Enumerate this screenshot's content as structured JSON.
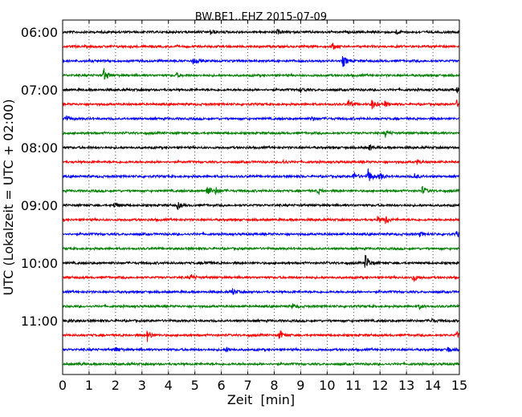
{
  "chart_data": {
    "type": "line",
    "title": "BW.BE1..EHZ 2015-07-09",
    "xlabel": "Zeit  [min]",
    "ylabel": "UTC (Lokalzeit = UTC + 02:00)",
    "xlim": [
      0,
      15
    ],
    "x_ticks": [
      "0",
      "1",
      "2",
      "3",
      "4",
      "5",
      "6",
      "7",
      "8",
      "9",
      "10",
      "11",
      "12",
      "13",
      "14",
      "15"
    ],
    "y_ticks": [
      "06:00",
      "07:00",
      "08:00",
      "09:00",
      "10:00",
      "11:00"
    ],
    "grid": "vertical dotted",
    "color_cycle": [
      "#000000",
      "#ff0000",
      "#0000ff",
      "#008000"
    ],
    "traces": [
      {
        "start": "06:00",
        "color": "#000000",
        "events": [
          {
            "t": 5.6,
            "a": 0.4
          },
          {
            "t": 8.1,
            "a": 0.3
          },
          {
            "t": 12.6,
            "a": 0.3
          }
        ]
      },
      {
        "start": "06:15",
        "color": "#ff0000",
        "events": [
          {
            "t": 10.2,
            "a": 0.4
          }
        ]
      },
      {
        "start": "06:30",
        "color": "#0000ff",
        "events": [
          {
            "t": 4.95,
            "a": 0.5
          },
          {
            "t": 10.6,
            "a": 0.8
          }
        ]
      },
      {
        "start": "06:45",
        "color": "#008000",
        "events": [
          {
            "t": 1.55,
            "a": 1.0
          },
          {
            "t": 4.3,
            "a": 0.3
          }
        ]
      },
      {
        "start": "07:00",
        "color": "#000000",
        "events": [
          {
            "t": 9.0,
            "a": 0.3
          },
          {
            "t": 14.9,
            "a": 0.3
          }
        ]
      },
      {
        "start": "07:15",
        "color": "#ff0000",
        "events": [
          {
            "t": 10.8,
            "a": 0.6
          },
          {
            "t": 11.7,
            "a": 0.7
          },
          {
            "t": 12.2,
            "a": 0.4
          },
          {
            "t": 14.9,
            "a": 0.5
          }
        ]
      },
      {
        "start": "07:30",
        "color": "#0000ff",
        "events": [
          {
            "t": 0.1,
            "a": 0.5
          },
          {
            "t": 9.4,
            "a": 0.3
          }
        ]
      },
      {
        "start": "07:45",
        "color": "#008000",
        "events": [
          {
            "t": 12.2,
            "a": 0.5
          }
        ]
      },
      {
        "start": "08:00",
        "color": "#000000",
        "events": [
          {
            "t": 11.6,
            "a": 0.4
          }
        ]
      },
      {
        "start": "08:15",
        "color": "#ff0000",
        "events": [
          {
            "t": 8.3,
            "a": 0.3
          },
          {
            "t": 13.4,
            "a": 0.3
          }
        ]
      },
      {
        "start": "08:30",
        "color": "#0000ff",
        "events": [
          {
            "t": 11.0,
            "a": 0.6
          },
          {
            "t": 11.55,
            "a": 1.0
          },
          {
            "t": 12.0,
            "a": 0.5
          },
          {
            "t": 13.3,
            "a": 0.4
          }
        ]
      },
      {
        "start": "08:45",
        "color": "#008000",
        "events": [
          {
            "t": 5.45,
            "a": 0.9
          },
          {
            "t": 5.8,
            "a": 0.5
          },
          {
            "t": 9.65,
            "a": 0.4
          },
          {
            "t": 13.6,
            "a": 0.6
          }
        ]
      },
      {
        "start": "09:00",
        "color": "#000000",
        "events": [
          {
            "t": 1.95,
            "a": 0.4
          },
          {
            "t": 4.35,
            "a": 0.5
          }
        ]
      },
      {
        "start": "09:15",
        "color": "#ff0000",
        "events": [
          {
            "t": 11.9,
            "a": 0.4
          },
          {
            "t": 12.2,
            "a": 0.6
          }
        ]
      },
      {
        "start": "09:30",
        "color": "#0000ff",
        "events": [
          {
            "t": 13.5,
            "a": 0.3
          },
          {
            "t": 14.9,
            "a": 0.3
          }
        ]
      },
      {
        "start": "09:45",
        "color": "#008000",
        "events": []
      },
      {
        "start": "10:00",
        "color": "#000000",
        "events": [
          {
            "t": 5.4,
            "a": 0.3
          },
          {
            "t": 11.45,
            "a": 1.2
          }
        ]
      },
      {
        "start": "10:15",
        "color": "#ff0000",
        "events": [
          {
            "t": 4.85,
            "a": 0.4
          },
          {
            "t": 13.25,
            "a": 0.6
          }
        ]
      },
      {
        "start": "10:30",
        "color": "#0000ff",
        "events": [
          {
            "t": 6.4,
            "a": 0.5
          }
        ]
      },
      {
        "start": "10:45",
        "color": "#008000",
        "events": [
          {
            "t": 8.7,
            "a": 0.3
          },
          {
            "t": 13.5,
            "a": 0.3
          }
        ]
      },
      {
        "start": "11:00",
        "color": "#000000",
        "events": [
          {
            "t": 0.2,
            "a": 0.3
          },
          {
            "t": 13.9,
            "a": 0.3
          }
        ]
      },
      {
        "start": "11:15",
        "color": "#ff0000",
        "events": [
          {
            "t": 3.2,
            "a": 0.8
          },
          {
            "t": 8.2,
            "a": 0.7
          },
          {
            "t": 14.9,
            "a": 0.4
          }
        ]
      },
      {
        "start": "11:30",
        "color": "#0000ff",
        "events": [
          {
            "t": 2.0,
            "a": 0.4
          },
          {
            "t": 6.2,
            "a": 0.3
          },
          {
            "t": 14.55,
            "a": 0.4
          }
        ]
      },
      {
        "start": "11:45",
        "color": "#008000",
        "events": [
          {
            "t": 0.6,
            "a": 0.2
          }
        ]
      }
    ]
  }
}
